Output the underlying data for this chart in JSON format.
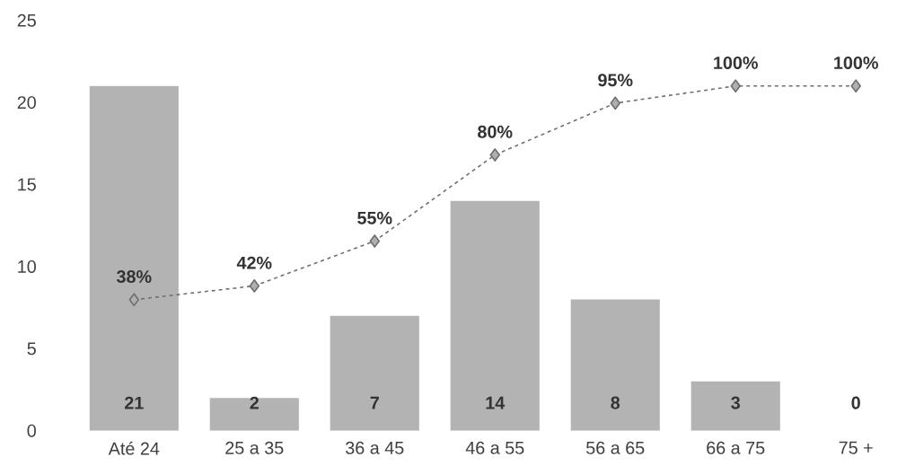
{
  "chart_data": {
    "type": "bar",
    "categories": [
      "Até 24",
      "25 a 35",
      "36 a 45",
      "46 a 55",
      "56 a 65",
      "66 a 75",
      "75 +"
    ],
    "ylim": [
      0,
      25
    ],
    "yticks": [
      0,
      5,
      10,
      15,
      20,
      25
    ],
    "series": [
      {
        "color": "#b3b3b3",
        "values": [
          21,
          2,
          7,
          14,
          8,
          3,
          0
        ],
        "value_labels": [
          "21",
          "2",
          "7",
          "14",
          "8",
          "3",
          "0"
        ]
      },
      {
        "type": "line",
        "axis": "y2",
        "color": "#6e6e6e",
        "marker": "diamond",
        "line_style": "dashed",
        "values": [
          38,
          42,
          55,
          80,
          95,
          100,
          100
        ],
        "value_labels": [
          "38%",
          "42%",
          "55%",
          "80%",
          "95%",
          "100%",
          "100%"
        ]
      }
    ]
  }
}
